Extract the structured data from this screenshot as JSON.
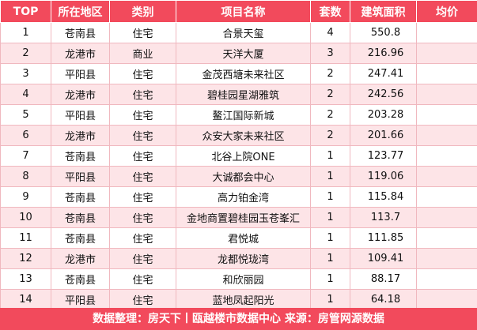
{
  "table": {
    "headers": [
      "TOP",
      "所在地区",
      "类别",
      "项目名称",
      "套数",
      "建筑面积",
      "均价"
    ],
    "rows": [
      {
        "top": "1",
        "region": "苍南县",
        "category": "住宅",
        "project": "合景天玺",
        "units": "4",
        "area": "550.8",
        "price": ""
      },
      {
        "top": "2",
        "region": "龙港市",
        "category": "商业",
        "project": "天洋大厦",
        "units": "3",
        "area": "216.96",
        "price": ""
      },
      {
        "top": "3",
        "region": "平阳县",
        "category": "住宅",
        "project": "金茂西塘未来社区",
        "units": "2",
        "area": "247.41",
        "price": ""
      },
      {
        "top": "4",
        "region": "龙港市",
        "category": "住宅",
        "project": "碧桂园星湖雅筑",
        "units": "2",
        "area": "242.56",
        "price": ""
      },
      {
        "top": "5",
        "region": "平阳县",
        "category": "住宅",
        "project": "鳌江国际新城",
        "units": "2",
        "area": "203.28",
        "price": ""
      },
      {
        "top": "6",
        "region": "龙港市",
        "category": "住宅",
        "project": "众安大家未来社区",
        "units": "2",
        "area": "201.66",
        "price": ""
      },
      {
        "top": "7",
        "region": "苍南县",
        "category": "住宅",
        "project": "北谷上院ONE",
        "units": "1",
        "area": "123.77",
        "price": ""
      },
      {
        "top": "8",
        "region": "平阳县",
        "category": "住宅",
        "project": "大诚都会中心",
        "units": "1",
        "area": "119.06",
        "price": ""
      },
      {
        "top": "9",
        "region": "苍南县",
        "category": "住宅",
        "project": "高力铂金湾",
        "units": "1",
        "area": "115.84",
        "price": ""
      },
      {
        "top": "10",
        "region": "苍南县",
        "category": "住宅",
        "project": "金地商置碧桂园玉苍峯汇",
        "units": "1",
        "area": "113.7",
        "price": ""
      },
      {
        "top": "11",
        "region": "苍南县",
        "category": "住宅",
        "project": "君悦城",
        "units": "1",
        "area": "111.85",
        "price": ""
      },
      {
        "top": "12",
        "region": "龙港市",
        "category": "住宅",
        "project": "龙都悦珑湾",
        "units": "1",
        "area": "109.41",
        "price": ""
      },
      {
        "top": "13",
        "region": "苍南县",
        "category": "住宅",
        "project": "和欣丽园",
        "units": "1",
        "area": "88.17",
        "price": ""
      },
      {
        "top": "14",
        "region": "平阳县",
        "category": "住宅",
        "project": "蓝地凤起阳光",
        "units": "1",
        "area": "64.18",
        "price": ""
      }
    ]
  },
  "footer": {
    "text": "数据整理：房天下丨瓯越楼市数据中心   来源：房管网源数据"
  }
}
